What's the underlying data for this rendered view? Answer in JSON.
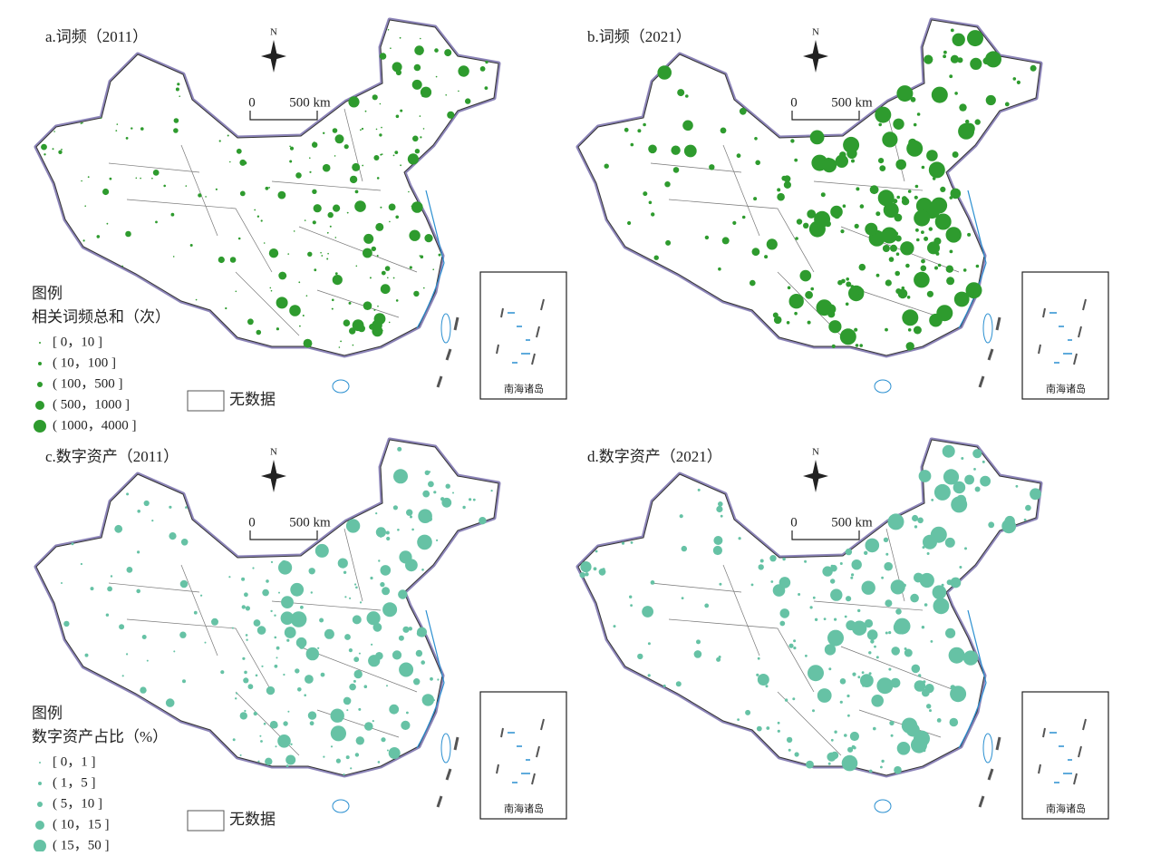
{
  "panels": [
    {
      "title": "a.词频（2011）",
      "north": "N",
      "scale_start": "0",
      "scale_end": "500 km",
      "inset": "南海诸岛",
      "color": "#2e9b2e"
    },
    {
      "title": "b.词频（2021）",
      "north": "N",
      "scale_start": "0",
      "scale_end": "500 km",
      "inset": "南海诸岛",
      "color": "#2e9b2e"
    },
    {
      "title": "c.数字资产（2011）",
      "north": "N",
      "scale_start": "0",
      "scale_end": "500 km",
      "inset": "南海诸岛",
      "color": "#66c2a5"
    },
    {
      "title": "d.数字资产（2021）",
      "north": "N",
      "scale_start": "0",
      "scale_end": "500 km",
      "inset": "南海诸岛",
      "color": "#66c2a5"
    }
  ],
  "legends": [
    {
      "title": "图例",
      "subtitle": "相关词频总和（次）",
      "items": [
        "[ 0，10 ]",
        "( 10，100 ]",
        "( 100，500 ]",
        "( 500，1000 ]",
        "( 1000，4000 ]"
      ],
      "no_data": "无数据",
      "color": "#2e9b2e"
    },
    {
      "title": "图例",
      "subtitle": "数字资产占比（%）",
      "items": [
        "[ 0，1 ]",
        "( 1，5 ]",
        "( 5，10 ]",
        "( 10，15 ]",
        "( 15，50 ]"
      ],
      "no_data": "无数据",
      "color": "#66c2a5"
    }
  ]
}
